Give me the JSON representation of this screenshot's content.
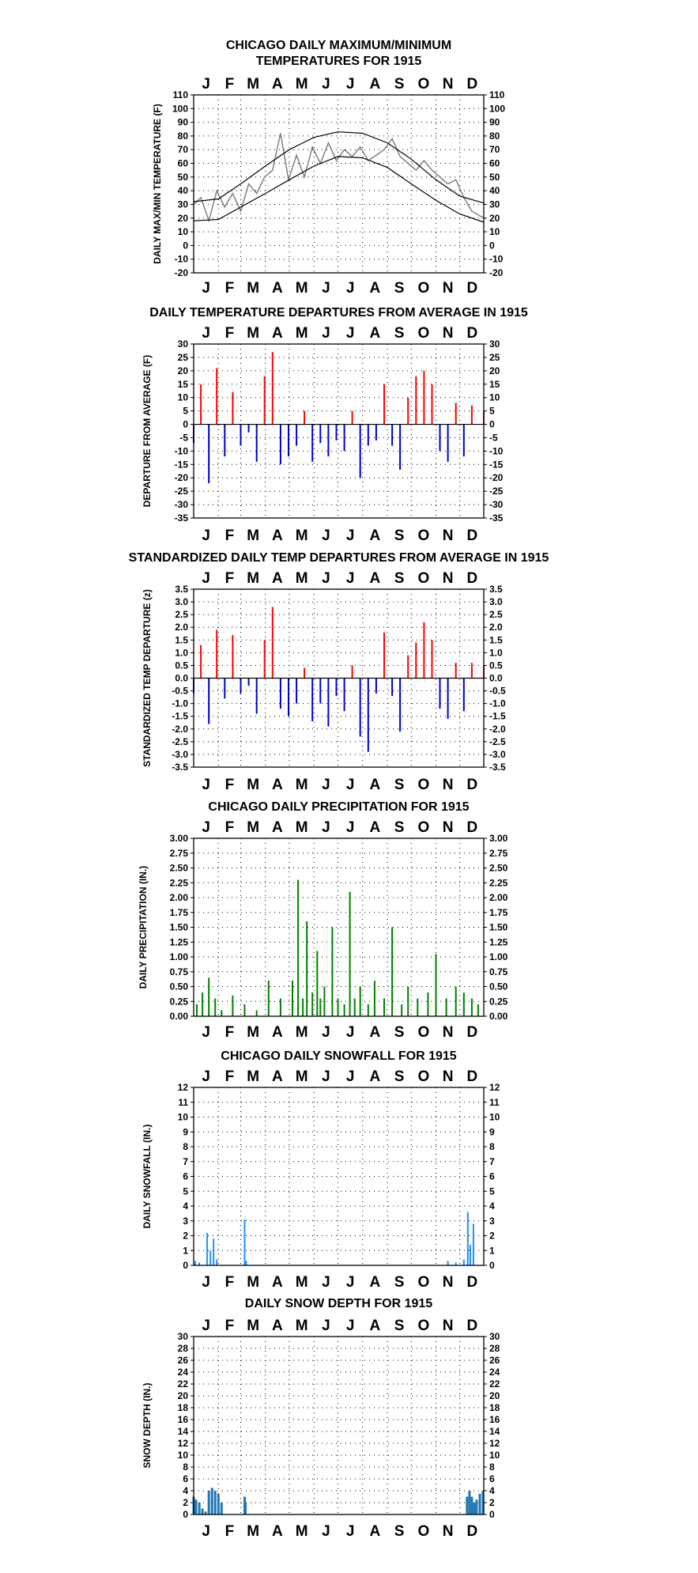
{
  "month_labels": [
    "J",
    "F",
    "M",
    "A",
    "M",
    "J",
    "J",
    "A",
    "S",
    "O",
    "N",
    "D"
  ],
  "colors": {
    "max_series": "#000000",
    "min_series": "#000000",
    "observed": "#808080",
    "positive": "#ff0000",
    "negative": "#0000cc",
    "precip": "#008000",
    "snow": "#1e90ff",
    "depth": "#1f77b4"
  },
  "chart_data": [
    {
      "type": "line",
      "title": "CHICAGO DAILY MAXIMUM/MINIMUM TEMPERATURES FOR 1915",
      "title_lines": [
        "CHICAGO DAILY MAXIMUM/MINIMUM",
        "TEMPERATURES FOR 1915"
      ],
      "ylabel": "DAILY MAX/MIN TEMPERATURE (F)",
      "ylim": [
        -20,
        110
      ],
      "yticks": [
        -20,
        -10,
        0,
        10,
        20,
        30,
        40,
        50,
        60,
        70,
        80,
        90,
        100,
        110
      ],
      "xlim": [
        1,
        365
      ],
      "grid": true,
      "normal_max": {
        "x": [
          1,
          32,
          60,
          91,
          121,
          152,
          182,
          213,
          244,
          274,
          305,
          335,
          365
        ],
        "y": [
          32,
          34,
          45,
          58,
          70,
          79,
          83,
          82,
          75,
          63,
          48,
          36,
          31
        ]
      },
      "normal_min": {
        "x": [
          1,
          32,
          60,
          91,
          121,
          152,
          182,
          213,
          244,
          274,
          305,
          335,
          365
        ],
        "y": [
          18,
          19,
          28,
          38,
          48,
          58,
          65,
          64,
          57,
          45,
          33,
          23,
          17
        ]
      },
      "observed": {
        "x": [
          1,
          10,
          20,
          30,
          40,
          50,
          60,
          70,
          80,
          90,
          100,
          110,
          120,
          130,
          140,
          150,
          160,
          170,
          180,
          190,
          200,
          210,
          220,
          230,
          240,
          250,
          260,
          270,
          280,
          290,
          300,
          310,
          320,
          330,
          340,
          350,
          365
        ],
        "y": [
          30,
          35,
          18,
          40,
          28,
          38,
          25,
          45,
          38,
          50,
          55,
          82,
          48,
          66,
          50,
          72,
          60,
          75,
          62,
          70,
          65,
          72,
          62,
          66,
          70,
          78,
          65,
          60,
          55,
          62,
          55,
          50,
          45,
          48,
          35,
          25,
          20
        ]
      }
    },
    {
      "type": "bar",
      "title": "DAILY TEMPERATURE DEPARTURES FROM AVERAGE IN 1915",
      "ylabel": "DEPARTURE FROM AVERAGE (F)",
      "ylim": [
        -35,
        30
      ],
      "yticks": [
        -35,
        -30,
        -25,
        -20,
        -15,
        -10,
        -5,
        0,
        5,
        10,
        15,
        20,
        25,
        30
      ],
      "xlim": [
        1,
        365
      ],
      "grid": true,
      "x": [
        1,
        10,
        20,
        30,
        40,
        50,
        60,
        70,
        80,
        90,
        100,
        110,
        120,
        130,
        140,
        150,
        160,
        170,
        180,
        190,
        200,
        210,
        220,
        230,
        240,
        250,
        260,
        270,
        280,
        290,
        300,
        310,
        320,
        330,
        340,
        350,
        365
      ],
      "values": [
        -7,
        15,
        -22,
        21,
        -12,
        12,
        -8,
        -3,
        -14,
        18,
        27,
        -15,
        -12,
        -8,
        5,
        -14,
        -7,
        -12,
        -6,
        -10,
        5,
        -20,
        -8,
        -6,
        15,
        -8,
        -17,
        10,
        18,
        20,
        15,
        -10,
        -14,
        8,
        -12,
        7,
        5
      ]
    },
    {
      "type": "bar",
      "title": "STANDARDIZED DAILY TEMP DEPARTURES FROM AVERAGE IN 1915",
      "ylabel": "STANDARDIZED TEMP DEPARTURE (z)",
      "ylim": [
        -3.5,
        3.5
      ],
      "yticks": [
        -3.5,
        -3.0,
        -2.5,
        -2.0,
        -1.5,
        -1.0,
        -0.5,
        0.0,
        0.5,
        1.0,
        1.5,
        2.0,
        2.5,
        3.0,
        3.5
      ],
      "xlim": [
        1,
        365
      ],
      "grid": true,
      "x": [
        1,
        10,
        20,
        30,
        40,
        50,
        60,
        70,
        80,
        90,
        100,
        110,
        120,
        130,
        140,
        150,
        160,
        170,
        180,
        190,
        200,
        210,
        220,
        230,
        240,
        250,
        260,
        270,
        280,
        290,
        300,
        310,
        320,
        330,
        340,
        350,
        365
      ],
      "values": [
        -0.6,
        1.3,
        -1.8,
        1.9,
        -0.8,
        1.7,
        -0.6,
        -0.3,
        -1.4,
        1.5,
        2.8,
        -1.2,
        -1.5,
        -1.0,
        0.4,
        -1.7,
        -1.0,
        -1.9,
        -0.7,
        -1.3,
        0.5,
        -2.3,
        -2.9,
        -0.6,
        1.8,
        -0.7,
        -2.1,
        0.9,
        1.4,
        2.2,
        1.5,
        -1.2,
        -1.6,
        0.6,
        -1.3,
        0.6,
        0.5
      ]
    },
    {
      "type": "bar",
      "title": "CHICAGO DAILY PRECIPITATION FOR 1915",
      "ylabel": "DAILY PRECIPITATION (IN.)",
      "ylim": [
        0,
        3.0
      ],
      "yticks": [
        0.0,
        0.25,
        0.5,
        0.75,
        1.0,
        1.25,
        1.5,
        1.75,
        2.0,
        2.25,
        2.5,
        2.75,
        3.0
      ],
      "xlim": [
        1,
        365
      ],
      "grid": true,
      "x": [
        5,
        12,
        20,
        28,
        36,
        50,
        65,
        80,
        95,
        110,
        125,
        132,
        138,
        143,
        150,
        156,
        160,
        165,
        175,
        182,
        190,
        197,
        203,
        210,
        220,
        228,
        240,
        250,
        262,
        270,
        282,
        295,
        305,
        318,
        330,
        340,
        350,
        358
      ],
      "values": [
        0.2,
        0.4,
        0.65,
        0.3,
        0.1,
        0.35,
        0.2,
        0.1,
        0.6,
        0.3,
        0.6,
        2.3,
        0.3,
        1.6,
        0.4,
        1.1,
        0.3,
        0.5,
        1.5,
        0.3,
        0.2,
        2.1,
        0.3,
        0.5,
        0.2,
        0.6,
        0.3,
        1.5,
        0.2,
        0.5,
        0.3,
        0.4,
        1.05,
        0.3,
        0.5,
        0.4,
        0.3,
        0.2
      ]
    },
    {
      "type": "bar",
      "title": "CHICAGO DAILY SNOWFALL FOR 1915",
      "ylabel": "DAILY SNOWFALL (IN.)",
      "ylim": [
        0,
        12
      ],
      "yticks": [
        0,
        1,
        2,
        3,
        4,
        5,
        6,
        7,
        8,
        9,
        10,
        11,
        12
      ],
      "xlim": [
        1,
        365
      ],
      "grid": true,
      "x": [
        3,
        8,
        18,
        22,
        26,
        30,
        65,
        67,
        320,
        330,
        340,
        345,
        348,
        352
      ],
      "values": [
        0.3,
        0.2,
        2.2,
        1.0,
        1.8,
        0.4,
        3.1,
        0.3,
        0.3,
        0.2,
        0.4,
        3.6,
        1.4,
        2.8
      ]
    },
    {
      "type": "bar",
      "title": "DAILY SNOW DEPTH FOR 1915",
      "ylabel": "SNOW DEPTH (IN.)",
      "ylim": [
        0,
        30
      ],
      "yticks": [
        0,
        2,
        4,
        6,
        8,
        10,
        12,
        14,
        16,
        18,
        20,
        22,
        24,
        26,
        28,
        30
      ],
      "xlim": [
        1,
        365
      ],
      "grid": true,
      "x": [
        1,
        4,
        8,
        12,
        16,
        20,
        24,
        28,
        32,
        36,
        65,
        66,
        344,
        347,
        350,
        353,
        356,
        360,
        364
      ],
      "values": [
        3,
        2.5,
        2,
        1,
        0.5,
        4,
        4.5,
        4,
        3.5,
        2,
        3,
        2,
        3,
        4,
        3,
        2,
        2.5,
        3.5,
        4
      ]
    }
  ]
}
